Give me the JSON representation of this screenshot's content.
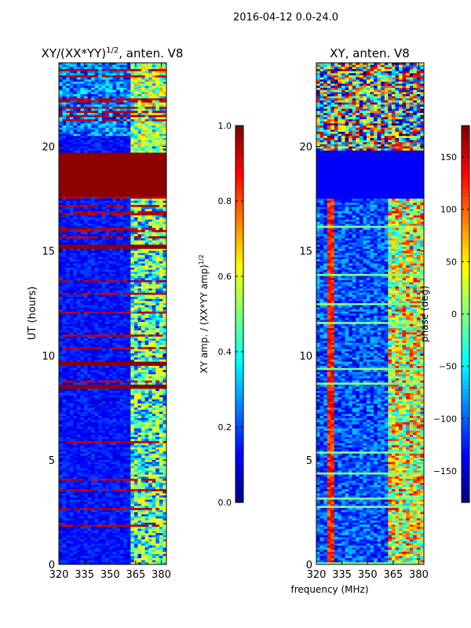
{
  "suptitle": "2016-04-12 0.0-24.0",
  "chart_data": [
    {
      "type": "heatmap",
      "title_main": "XY/(XX*YY)",
      "title_exp": "1/2",
      "title_suffix": ", anten. V8",
      "xlabel": "",
      "ylabel": "UT (hours)",
      "xlim": [
        320,
        383
      ],
      "ylim": [
        0,
        24
      ],
      "xticks": [
        "320",
        "335",
        "350",
        "365",
        "380"
      ],
      "xtick_values": [
        320,
        335,
        350,
        365,
        380
      ],
      "yticks": [
        "0",
        "5",
        "10",
        "15",
        "20"
      ],
      "ytick_values": [
        0,
        5,
        10,
        15,
        20
      ],
      "colorbar": {
        "label_main": "XY amp. / (XX*YY amp)",
        "label_exp": "1/2",
        "range": [
          0.0,
          1.0
        ],
        "ticks": [
          "0.0",
          "0.2",
          "0.4",
          "0.6",
          "0.8",
          "1.0"
        ],
        "tick_values": [
          0.0,
          0.2,
          0.4,
          0.6,
          0.8,
          1.0
        ],
        "colormap": "jet"
      },
      "saturated_bands_hours": [
        [
          17.6,
          19.7
        ],
        [
          15.1,
          15.3
        ],
        [
          9.5,
          9.7
        ],
        [
          8.4,
          8.6
        ]
      ]
    },
    {
      "type": "heatmap",
      "title_main": "XY, anten. V8",
      "xlabel": "frequency (MHz)",
      "ylabel": "",
      "xlim": [
        320,
        383
      ],
      "ylim": [
        0,
        24
      ],
      "xticks": [
        "320",
        "335",
        "350",
        "365",
        "380"
      ],
      "xtick_values": [
        320,
        335,
        350,
        365,
        380
      ],
      "yticks": [
        "0",
        "5",
        "10",
        "15",
        "20"
      ],
      "ytick_values": [
        0,
        5,
        10,
        15,
        20
      ],
      "colorbar": {
        "label_main": "phase (deg)",
        "range": [
          -180,
          180
        ],
        "ticks": [
          "−150",
          "−100",
          "−50",
          "0",
          "50",
          "100",
          "150"
        ],
        "tick_values": [
          -150,
          -100,
          -50,
          0,
          50,
          100,
          150
        ],
        "colormap": "jet"
      },
      "uniform_band_hours": [
        17.5,
        19.8
      ]
    }
  ]
}
